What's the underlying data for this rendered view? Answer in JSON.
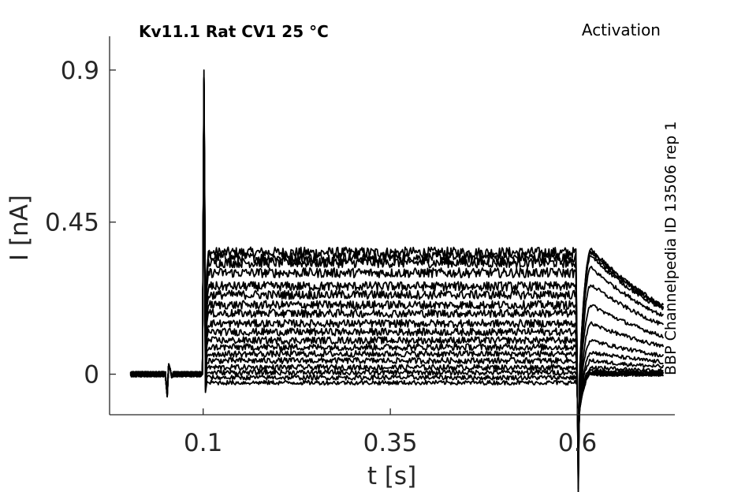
{
  "chart_data": {
    "type": "line",
    "title": "Kv11.1  Rat  CV1  25 °C",
    "protocol": "Activation",
    "source_label": "BBP Channelpedia ID 13506 rep 1",
    "xlabel": "t [s]",
    "ylabel": "I [nA]",
    "xlim": [
      -0.025,
      0.73
    ],
    "ylim": [
      -0.12,
      1.0
    ],
    "xticks": [
      0.1,
      0.35,
      0.6
    ],
    "xtick_labels": [
      "0.1",
      "0.35",
      "0.6"
    ],
    "yticks": [
      0,
      0.45,
      0.9
    ],
    "ytick_labels": [
      "0",
      "0.45",
      "0.9"
    ],
    "grid": false,
    "legend": "none",
    "line_color": "#000000",
    "protocol_windows": {
      "baseline_start": 0.003,
      "artifact_time": 0.05,
      "step_start": 0.1,
      "step_end": 0.6,
      "trace_end": 0.715
    },
    "capacitive_peak": 0.9,
    "tail_undershoot": -0.35,
    "series": [
      {
        "step": 0.36,
        "tail": 0.37
      },
      {
        "step": 0.345,
        "tail": 0.365
      },
      {
        "step": 0.33,
        "tail": 0.36
      },
      {
        "step": 0.3,
        "tail": 0.35
      },
      {
        "step": 0.26,
        "tail": 0.315
      },
      {
        "step": 0.235,
        "tail": 0.265
      },
      {
        "step": 0.205,
        "tail": 0.205
      },
      {
        "step": 0.18,
        "tail": 0.15
      },
      {
        "step": 0.15,
        "tail": 0.1
      },
      {
        "step": 0.125,
        "tail": 0.065
      },
      {
        "step": 0.1,
        "tail": 0.04
      },
      {
        "step": 0.08,
        "tail": 0.02
      },
      {
        "step": 0.06,
        "tail": 0.01
      },
      {
        "step": 0.04,
        "tail": 0.005
      },
      {
        "step": 0.02,
        "tail": 0.0
      },
      {
        "step": 0.005,
        "tail": 0.0
      },
      {
        "step": -0.01,
        "tail": 0.0
      },
      {
        "step": -0.025,
        "tail": 0.0
      }
    ]
  }
}
